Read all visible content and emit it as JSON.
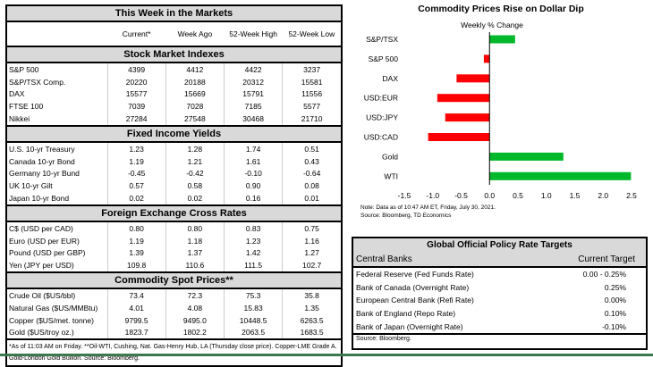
{
  "markets": {
    "title": "This Week in the Markets",
    "columns": [
      "Current*",
      "Week Ago",
      "52-Week High",
      "52-Week Low"
    ],
    "sections": [
      {
        "title": "Stock Market Indexes",
        "rows": [
          [
            "S&P 500",
            "4399",
            "4412",
            "4422",
            "3237"
          ],
          [
            "S&P/TSX Comp.",
            "20220",
            "20188",
            "20312",
            "15581"
          ],
          [
            "DAX",
            "15577",
            "15669",
            "15791",
            "11556"
          ],
          [
            "FTSE 100",
            "7039",
            "7028",
            "7185",
            "5577"
          ],
          [
            "Nikkei",
            "27284",
            "27548",
            "30468",
            "21710"
          ]
        ]
      },
      {
        "title": "Fixed Income Yields",
        "rows": [
          [
            "U.S. 10-yr Treasury",
            "1.23",
            "1.28",
            "1.74",
            "0.51"
          ],
          [
            "Canada 10-yr Bond",
            "1.19",
            "1.21",
            "1.61",
            "0.43"
          ],
          [
            "Germany 10-yr Bund",
            "-0.45",
            "-0.42",
            "-0.10",
            "-0.64"
          ],
          [
            "UK 10-yr Gilt",
            "0.57",
            "0.58",
            "0.90",
            "0.08"
          ],
          [
            "Japan 10-yr Bond",
            "0.02",
            "0.02",
            "0.16",
            "0.01"
          ]
        ]
      },
      {
        "title": "Foreign Exchange Cross Rates",
        "rows": [
          [
            "C$ (USD per CAD)",
            "0.80",
            "0.80",
            "0.83",
            "0.75"
          ],
          [
            "Euro (USD per EUR)",
            "1.19",
            "1.18",
            "1.23",
            "1.16"
          ],
          [
            "Pound (USD per GBP)",
            "1.39",
            "1.37",
            "1.42",
            "1.27"
          ],
          [
            "Yen (JPY per USD)",
            "109.8",
            "110.6",
            "111.5",
            "102.7"
          ]
        ]
      },
      {
        "title": "Commodity Spot Prices**",
        "rows": [
          [
            "Crude Oil ($US/bbl)",
            "73.4",
            "72.3",
            "75.3",
            "35.8"
          ],
          [
            "Natural Gas ($US/MMBtu)",
            "4.01",
            "4.08",
            "15.83",
            "1.35"
          ],
          [
            "Copper ($US/met. tonne)",
            "9799.5",
            "9495.0",
            "10448.5",
            "6263.5"
          ],
          [
            "Gold ($US/troy oz.)",
            "1823.7",
            "1802.2",
            "2063.5",
            "1683.5"
          ]
        ]
      }
    ],
    "footnote": "*As of 11:03 AM on Friday. **Oil-WTI, Cushing, Nat. Gas-Henry Hub, LA (Thursday close price). Copper-LME Grade A. Gold-London Gold Bullion. Source: Bloomberg."
  },
  "chart_data": {
    "type": "bar",
    "orientation": "horizontal",
    "title": "Commodity Prices Rise on Dollar Dip",
    "subtitle": "Weekly % Change",
    "categories": [
      "S&P/TSX",
      "S&P 500",
      "DAX",
      "USD:EUR",
      "USD:JPY",
      "USD:CAD",
      "Gold",
      "WTI"
    ],
    "values": [
      0.45,
      -0.1,
      -0.58,
      -0.92,
      -0.78,
      -1.08,
      1.3,
      2.49
    ],
    "xlim": [
      -1.5,
      2.5
    ],
    "xticks": [
      "-1.5",
      "-1.0",
      "-0.5",
      "0.0",
      "0.5",
      "1.0",
      "1.5",
      "2.0",
      "2.5"
    ],
    "colors": {
      "positive": "#00b82a",
      "negative": "#ff0000"
    },
    "grid": false,
    "note": "Note: Data as of 10:47 AM ET, Friday, July 30, 2021.",
    "source": "Source: Bloomberg, TD Economics"
  },
  "policy": {
    "title": "Global Official Policy Rate Targets",
    "col1": "Central Banks",
    "col2": "Current Target",
    "rows": [
      [
        "Federal Reserve (Fed Funds Rate)",
        "0.00 - 0.25%"
      ],
      [
        "Bank of Canada (Overnight Rate)",
        "0.25%"
      ],
      [
        "European Central Bank (Refi Rate)",
        "0.00%"
      ],
      [
        "Bank of England (Repo Rate)",
        "0.10%"
      ],
      [
        "Bank of Japan (Overnight Rate)",
        "-0.10%"
      ]
    ],
    "source": "Source: Bloomberg."
  }
}
